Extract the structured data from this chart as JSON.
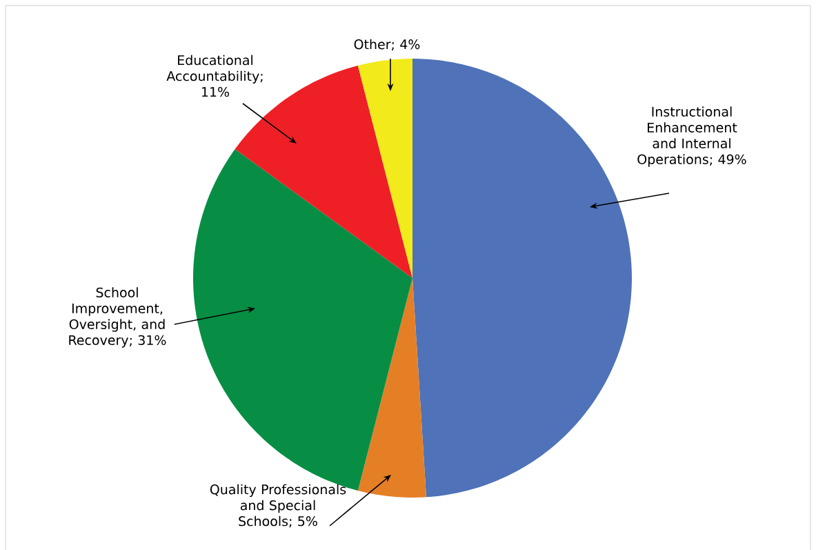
{
  "chart_data": {
    "type": "pie",
    "categories": [
      "Instructional Enhancement and Internal Operations",
      "Quality Professionals and Special Schools",
      "School Improvement, Oversight, and Recovery",
      "Educational Accountability",
      "Other"
    ],
    "values": [
      49,
      5,
      31,
      11,
      4
    ],
    "value_labels": [
      "; 49%",
      "; 5%",
      "; 31%",
      "; 11%",
      "; 4%"
    ],
    "colors": [
      "#4f72b8",
      "#e57f26",
      "#078e44",
      "#ee2026",
      "#f2ea1a"
    ]
  }
}
